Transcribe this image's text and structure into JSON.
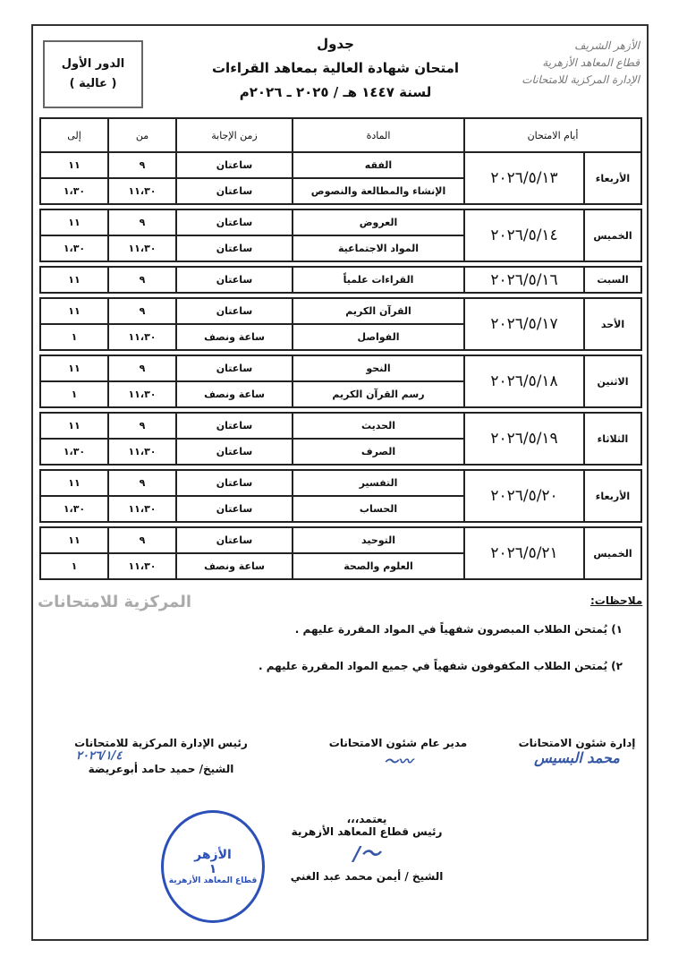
{
  "round": {
    "line1": "الدور الأول",
    "line2": "( عالية )"
  },
  "title": {
    "line1": "جدول",
    "line2": "امتحان شهادة العالية بمعاهد القراءات",
    "line3": "لسنة ١٤٤٧ هـ / ٢٠٢٥ ـ ٢٠٢٦م"
  },
  "logo": {
    "lines": [
      "الأزهر الشريف",
      "قطاع المعاهد الأزهرية",
      "الإدارة المركزية للامتحانات"
    ]
  },
  "table": {
    "headers": {
      "days": "أيام الامتحان",
      "subject": "المادة",
      "duration": "زمن الإجابة",
      "from": "من",
      "to": "إلى"
    },
    "groups": [
      {
        "day": "الأربعاء",
        "date": "٢٠٢٦/٥/١٣",
        "rows": [
          {
            "subject": "الفقه",
            "duration": "ساعتان",
            "from": "٩",
            "to": "١١"
          },
          {
            "subject": "الإنشاء والمطالعة والنصوص",
            "duration": "ساعتان",
            "from": "١١،٣٠",
            "to": "١،٣٠"
          }
        ]
      },
      {
        "day": "الخميس",
        "date": "٢٠٢٦/٥/١٤",
        "rows": [
          {
            "subject": "العروض",
            "duration": "ساعتان",
            "from": "٩",
            "to": "١١"
          },
          {
            "subject": "المواد الاجتماعية",
            "duration": "ساعتان",
            "from": "١١،٣٠",
            "to": "١،٣٠"
          }
        ]
      },
      {
        "day": "السبت",
        "date": "٢٠٢٦/٥/١٦",
        "rows": [
          {
            "subject": "القراءات علمياً",
            "duration": "ساعتان",
            "from": "٩",
            "to": "١١"
          }
        ]
      },
      {
        "day": "الأحد",
        "date": "٢٠٢٦/٥/١٧",
        "rows": [
          {
            "subject": "القرآن الكريم",
            "duration": "ساعتان",
            "from": "٩",
            "to": "١١"
          },
          {
            "subject": "الفواصل",
            "duration": "ساعة ونصف",
            "from": "١١،٣٠",
            "to": "١"
          }
        ]
      },
      {
        "day": "الاثنين",
        "date": "٢٠٢٦/٥/١٨",
        "rows": [
          {
            "subject": "النحو",
            "duration": "ساعتان",
            "from": "٩",
            "to": "١١"
          },
          {
            "subject": "رسم القرآن الكريم",
            "duration": "ساعة ونصف",
            "from": "١١،٣٠",
            "to": "١"
          }
        ]
      },
      {
        "day": "الثلاثاء",
        "date": "٢٠٢٦/٥/١٩",
        "rows": [
          {
            "subject": "الحديث",
            "duration": "ساعتان",
            "from": "٩",
            "to": "١١"
          },
          {
            "subject": "الصرف",
            "duration": "ساعتان",
            "from": "١١،٣٠",
            "to": "١،٣٠"
          }
        ]
      },
      {
        "day": "الأربعاء",
        "date": "٢٠٢٦/٥/٢٠",
        "rows": [
          {
            "subject": "التفسير",
            "duration": "ساعتان",
            "from": "٩",
            "to": "١١"
          },
          {
            "subject": "الحساب",
            "duration": "ساعتان",
            "from": "١١،٣٠",
            "to": "١،٣٠"
          }
        ]
      },
      {
        "day": "الخميس",
        "date": "٢٠٢٦/٥/٢١",
        "rows": [
          {
            "subject": "التوحيد",
            "duration": "ساعتان",
            "from": "٩",
            "to": "١١"
          },
          {
            "subject": "العلوم والصحة",
            "duration": "ساعة ونصف",
            "from": "١١،٣٠",
            "to": "١"
          }
        ]
      }
    ]
  },
  "watermark": "المركزية للامتحانات",
  "notes": {
    "label": "ملاحظات:",
    "items": [
      "١) يُمتحن الطلاب المبصرون شفهياً في المواد المقررة عليهم .",
      "٢) يُمتحن الطلاب المكفوفون شفهياً في جميع المواد المقررة عليهم ."
    ]
  },
  "signatures": {
    "s1": {
      "title": "إدارة شئون الامتحانات",
      "scribble": "محمد البسيس"
    },
    "s2": {
      "title": "مدير عام شئون الامتحانات"
    },
    "s3": {
      "title": "رئيس الإدارة المركزية للامتحانات",
      "date": "٢٠٢٦/١/٤",
      "name": "الشيخ/ حميد حامد أبوعريضة"
    },
    "approval": {
      "label": "يعتمد،،،",
      "title": "رئيس قطاع المعاهد الأزهرية",
      "name": "الشيخ / أيمن محمد عبد الغني"
    }
  },
  "stamp": {
    "line1": "الأزهر",
    "line2": "١",
    "line3": "قطاع المعاهد الأزهرية"
  }
}
